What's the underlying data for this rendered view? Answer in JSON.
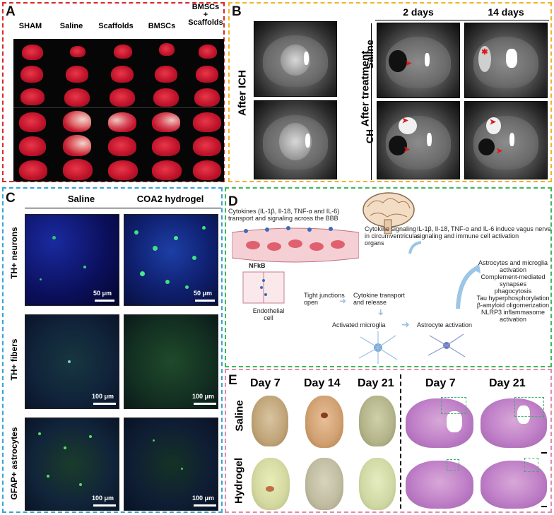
{
  "panel_labels": {
    "a": "A",
    "b": "B",
    "c": "C",
    "d": "D",
    "e": "E"
  },
  "panelA": {
    "columns": [
      "SHAM",
      "Saline",
      "Scaffolds",
      "BMSCs",
      "BMSCs\n+\nScaffolds"
    ]
  },
  "panelB": {
    "after_ich": "After ICH",
    "after_treatment": "After treatment",
    "day2": "2 days",
    "day14": "14 days",
    "row_saline": "Saline",
    "row_ch": "CH"
  },
  "panelC": {
    "col_saline": "Saline",
    "col_hydrogel": "COA2 hydrogel",
    "row_neurons": "TH+ neurons",
    "row_fibers": "TH+ fibers",
    "row_gfap": "GFAP+ astrocytes",
    "scale_50": "50 μm",
    "scale_100": "100 μm"
  },
  "panelD": {
    "cytokines_text": "Cytokines (IL-1β, Il-18, TNF-α and IL-6) transport and signaling across the BBB",
    "cytokine_signaling": "Cytokine signaling in circumventricular organs",
    "vagus": "IL-1β, Il-18, TNF-α and IL-6 induce vagus nerve signaling and immune cell activation",
    "nfkb": "NFkB",
    "tight_junctions": "Tight junctions open",
    "transport": "Cytokine transport and release",
    "endothelial": "Endothelial cell",
    "microglia": "Activated microglia",
    "astrocyte": "Astrocyte activation",
    "effects": [
      "Astrocytes and microglia activation",
      "Complement-mediated synapses",
      "phagocytosis",
      "Tau hyperphosphorylation",
      "β-amyloid oligomerization",
      "NLRP3 inflammasome activation"
    ]
  },
  "panelE": {
    "days_left": [
      "Day 7",
      "Day 14",
      "Day 21"
    ],
    "days_right": [
      "Day 7",
      "Day 21"
    ],
    "row_saline": "Saline",
    "row_hydrogel": "Hydrogel"
  },
  "colors": {
    "panelA_border": "#d62a2a",
    "panelB_border": "#f0b428",
    "panelC_border": "#36a4d8",
    "panelD_border": "#3cb85a",
    "panelE_border": "#e48aaa",
    "arrow": "#e01a1a"
  }
}
